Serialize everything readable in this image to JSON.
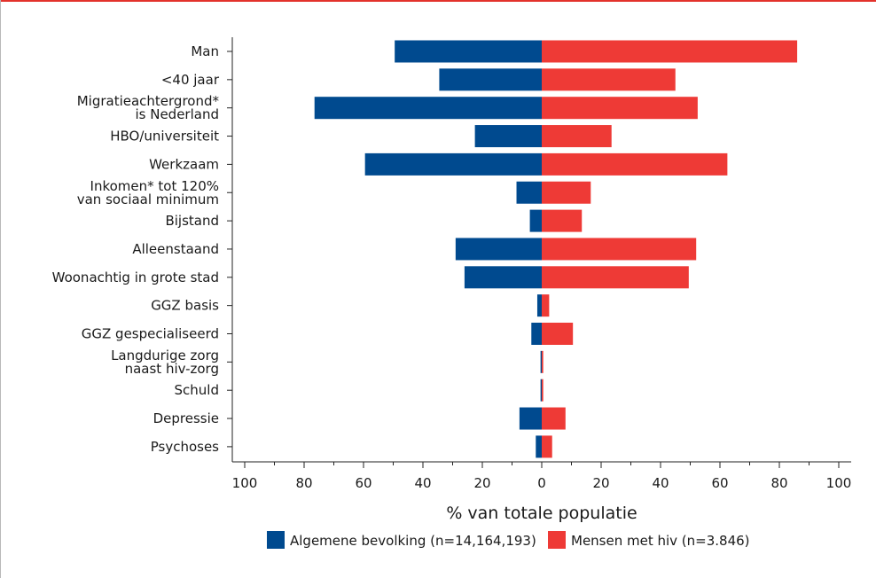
{
  "chart_data": {
    "type": "bar",
    "orientation": "horizontal-diverging",
    "categories": [
      [
        "Man"
      ],
      [
        "<40 jaar"
      ],
      [
        "Migratieachtergrond*",
        "is Nederland"
      ],
      [
        "HBO/universiteit"
      ],
      [
        "Werkzaam"
      ],
      [
        "Inkomen* tot 120%",
        "van sociaal minimum"
      ],
      [
        "Bijstand"
      ],
      [
        "Alleenstaand"
      ],
      [
        "Woonachtig in grote stad"
      ],
      [
        "GGZ basis"
      ],
      [
        "GGZ gespecialiseerd"
      ],
      [
        "Langdurige zorg",
        "naast hiv-zorg"
      ],
      [
        "Schuld"
      ],
      [
        "Depressie"
      ],
      [
        "Psychoses"
      ]
    ],
    "series": [
      {
        "name": "Algemene bevolking (n=14,164,193)",
        "color": "#004a8f",
        "side": "left",
        "values": [
          49.5,
          34.5,
          76.5,
          22.5,
          59.5,
          8.5,
          4,
          29,
          26,
          1.5,
          3.5,
          0.4,
          0.4,
          7.5,
          2
        ]
      },
      {
        "name": "Mensen met hiv (n=3.846)",
        "color": "#ee3a36",
        "side": "right",
        "values": [
          86,
          45,
          52.5,
          23.5,
          62.5,
          16.5,
          13.5,
          52,
          49.5,
          2.5,
          10.5,
          0.5,
          0.5,
          8,
          3.5
        ]
      }
    ],
    "xlim": [
      -100,
      100
    ],
    "xticks": [
      "100",
      "80",
      "60",
      "40",
      "20",
      "0",
      "20",
      "40",
      "60",
      "80",
      "100"
    ],
    "xlabel": "% van totale populatie",
    "legend_position": "bottom",
    "grid": false
  }
}
